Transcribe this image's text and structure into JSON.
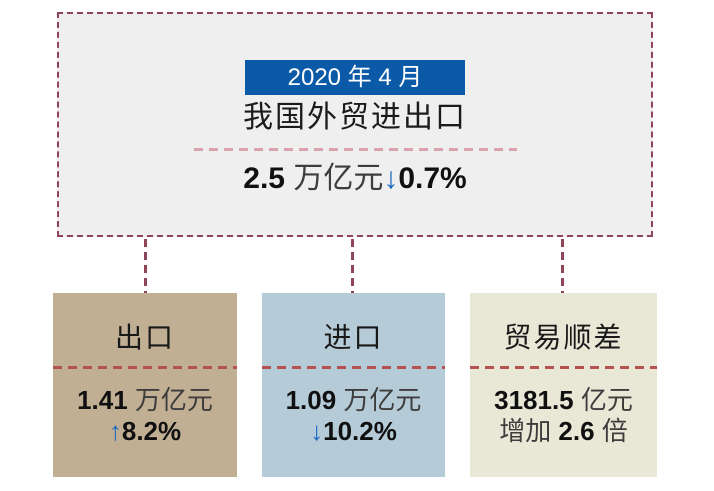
{
  "header": {
    "badge_label": "2020 年 4 月",
    "title": "我国外贸进出口",
    "stat": {
      "value": "2.5",
      "unit": " 万亿元",
      "arrow": "↓",
      "change": "0.7%"
    }
  },
  "cards": [
    {
      "title": "出口",
      "value": "1.41",
      "unit": " 万亿元",
      "line2_prefix": "",
      "arrow": "↑",
      "line2_bold": "8.2%",
      "line2_suffix": ""
    },
    {
      "title": "进口",
      "value": "1.09",
      "unit": " 万亿元",
      "line2_prefix": "",
      "arrow": "↓",
      "line2_bold": "10.2%",
      "line2_suffix": ""
    },
    {
      "title": "贸易顺差",
      "value": "3181.5",
      "unit": " 亿元",
      "line2_prefix": "增加 ",
      "arrow": "",
      "line2_bold": "2.6",
      "line2_suffix": " 倍"
    }
  ],
  "colors": {
    "page_bg": "#ffffff",
    "summary_bg": "#f0eff0",
    "dashed_border": "#8f4457",
    "badge_bg": "#0a5aa8",
    "badge_text": "#ffffff",
    "summary_divider": "#d9a2ad",
    "card_divider": "#b5524f",
    "arrow_blue": "#1b69c0",
    "export_card_bg": "#c1af93",
    "import_card_bg": "#b5ccd8",
    "surplus_card_bg": "#e9e8d7"
  }
}
